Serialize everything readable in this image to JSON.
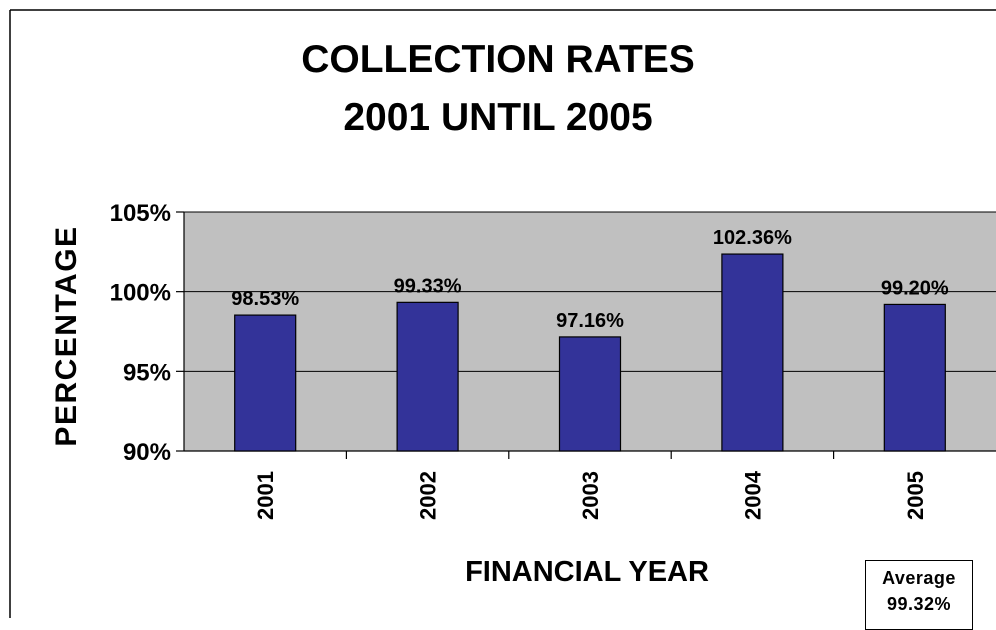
{
  "chart_data": {
    "type": "bar",
    "title": [
      "COLLECTION RATES",
      "2001 UNTIL 2005"
    ],
    "xlabel": "FINANCIAL YEAR",
    "ylabel": "PERCENTAGE",
    "categories": [
      "2001",
      "2002",
      "2003",
      "2004",
      "2005"
    ],
    "values": [
      98.53,
      99.33,
      97.16,
      102.36,
      99.2
    ],
    "data_labels": [
      "98.53%",
      "99.33%",
      "97.16%",
      "102.36%",
      "99.20%"
    ],
    "y_ticks": [
      90,
      95,
      100,
      105
    ],
    "y_tick_labels": [
      "90%",
      "95%",
      "100%",
      "105%"
    ],
    "ylim": [
      90,
      105
    ],
    "grid": true,
    "colors": {
      "bar": "#333399",
      "plot_bg": "#c0c0c0",
      "gridline": "#000000"
    }
  },
  "average_box": {
    "label": "Average",
    "value": "99.32%"
  }
}
